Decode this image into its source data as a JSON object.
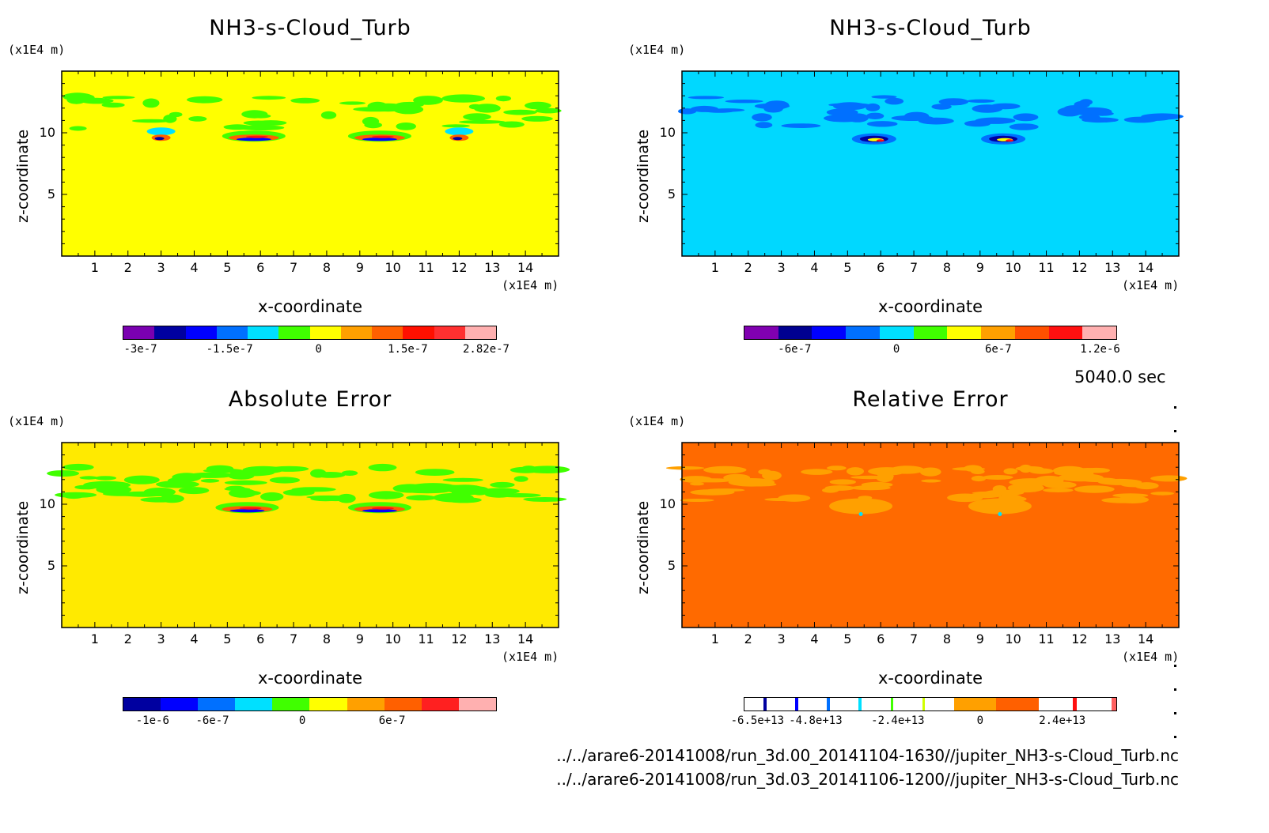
{
  "chart_data": [
    {
      "type": "heatmap",
      "title": "NH3-s-Cloud_Turb",
      "xlabel": "x-coordinate",
      "ylabel": "z-coordinate",
      "x_unit": "(x1E4 m)",
      "y_unit": "(x1E4 m)",
      "xlim": [
        0,
        15
      ],
      "ylim": [
        0,
        15
      ],
      "x_ticks": [
        "1",
        "2",
        "3",
        "4",
        "5",
        "6",
        "7",
        "8",
        "9",
        "10",
        "11",
        "12",
        "13",
        "14"
      ],
      "y_ticks": [
        "5",
        "10"
      ],
      "background_color": "#ffff00",
      "colorbar": {
        "colors": [
          "#7a00b0",
          "#0000a0",
          "#0000ff",
          "#0070ff",
          "#00e0ff",
          "#40ff00",
          "#ffff00",
          "#ffa000",
          "#ff6000",
          "#ff1000",
          "#ff3030",
          "#ffb0b0"
        ],
        "labels": [
          "-3e-7",
          "-1.5e-7",
          "0",
          "1.5e-7",
          "2.82e-7"
        ],
        "values": [
          -3e-07,
          -1.5e-07,
          0,
          1.5e-07,
          2.82e-07
        ],
        "range": [
          -3.3e-07,
          3e-07
        ]
      },
      "features": [
        {
          "x": 3.0,
          "z": 9.6,
          "kind": "minmax"
        },
        {
          "x": 5.8,
          "z": 9.6,
          "kind": "band"
        },
        {
          "x": 9.6,
          "z": 9.6,
          "kind": "band"
        },
        {
          "x": 12.0,
          "z": 9.6,
          "kind": "minmax"
        }
      ]
    },
    {
      "type": "heatmap",
      "title": "NH3-s-Cloud_Turb",
      "xlabel": "x-coordinate",
      "ylabel": "z-coordinate",
      "x_unit": "(x1E4 m)",
      "y_unit": "(x1E4 m)",
      "xlim": [
        0,
        15
      ],
      "ylim": [
        0,
        15
      ],
      "x_ticks": [
        "1",
        "2",
        "3",
        "4",
        "5",
        "6",
        "7",
        "8",
        "9",
        "10",
        "11",
        "12",
        "13",
        "14"
      ],
      "y_ticks": [
        "5",
        "10"
      ],
      "background_color": "#00d8ff",
      "colorbar": {
        "colors": [
          "#8000b0",
          "#000090",
          "#0000ff",
          "#0070ff",
          "#00e0ff",
          "#40ff00",
          "#ffff00",
          "#ffa000",
          "#ff5000",
          "#ff1010",
          "#ffb0b0"
        ],
        "labels": [
          "-6e-7",
          "0",
          "6e-7",
          "1.2e-6"
        ],
        "values": [
          -6e-07,
          0,
          6e-07,
          1.2e-06
        ],
        "range": [
          -9e-07,
          1.3e-06
        ]
      },
      "features": [
        {
          "x": 5.8,
          "z": 9.5,
          "kind": "peak"
        },
        {
          "x": 9.7,
          "z": 9.5,
          "kind": "peak"
        }
      ]
    },
    {
      "type": "heatmap",
      "title": "Absolute Error",
      "xlabel": "x-coordinate",
      "ylabel": "z-coordinate",
      "x_unit": "(x1E4 m)",
      "y_unit": "(x1E4 m)",
      "xlim": [
        0,
        15
      ],
      "ylim": [
        0,
        15
      ],
      "x_ticks": [
        "1",
        "2",
        "3",
        "4",
        "5",
        "6",
        "7",
        "8",
        "9",
        "10",
        "11",
        "12",
        "13",
        "14"
      ],
      "y_ticks": [
        "5",
        "10"
      ],
      "background_color": "#ffea00",
      "colorbar": {
        "colors": [
          "#0000a0",
          "#0000ff",
          "#0070ff",
          "#00e0ff",
          "#40ff00",
          "#ffff00",
          "#ffa000",
          "#ff6000",
          "#ff2020",
          "#ffb0b0"
        ],
        "labels": [
          "-1e-6",
          "-6e-7",
          "0",
          "6e-7"
        ],
        "values": [
          -1e-06,
          -6e-07,
          0,
          6e-07
        ],
        "range": [
          -1.2e-06,
          1.3e-06
        ]
      },
      "features": [
        {
          "x": 5.6,
          "z": 9.6,
          "kind": "band"
        },
        {
          "x": 9.6,
          "z": 9.6,
          "kind": "band"
        }
      ]
    },
    {
      "type": "heatmap",
      "title": "Relative Error",
      "xlabel": "x-coordinate",
      "ylabel": "z-coordinate",
      "x_unit": "(x1E4 m)",
      "y_unit": "(x1E4 m)",
      "xlim": [
        0,
        15
      ],
      "ylim": [
        0,
        15
      ],
      "x_ticks": [
        "1",
        "2",
        "3",
        "4",
        "5",
        "6",
        "7",
        "8",
        "9",
        "10",
        "11",
        "12",
        "13",
        "14"
      ],
      "y_ticks": [
        "5",
        "10"
      ],
      "background_color": "#ff6a00",
      "colorbar": {
        "segments": [
          {
            "color": "#ffffff",
            "w": 1
          },
          {
            "color": "#0000a0",
            "w": 0.15
          },
          {
            "color": "#ffffff",
            "w": 1.5
          },
          {
            "color": "#0000ff",
            "w": 0.15
          },
          {
            "color": "#ffffff",
            "w": 1.5
          },
          {
            "color": "#0070ff",
            "w": 0.15
          },
          {
            "color": "#ffffff",
            "w": 1.5
          },
          {
            "color": "#00e0ff",
            "w": 0.15
          },
          {
            "color": "#ffffff",
            "w": 1.5
          },
          {
            "color": "#40ff00",
            "w": 0.15
          },
          {
            "color": "#ffffff",
            "w": 1.5
          },
          {
            "color": "#d0ff00",
            "w": 0.15
          },
          {
            "color": "#ffffff",
            "w": 1.5
          },
          {
            "color": "#ffa000",
            "w": 2.2
          },
          {
            "color": "#ff6000",
            "w": 2.2
          },
          {
            "color": "#ffffff",
            "w": 1.8
          },
          {
            "color": "#ff1010",
            "w": 0.2
          },
          {
            "color": "#ffffff",
            "w": 1.8
          },
          {
            "color": "#ff6060",
            "w": 0.25
          }
        ],
        "labels": [
          "-6.5e+13",
          "-4.8e+13",
          "-2.4e+13",
          "0",
          "2.4e+13"
        ],
        "values": [
          -65000000000000.0,
          -48000000000000.0,
          -24000000000000.0,
          0,
          24000000000000.0
        ],
        "range": [
          -69000000000000.0,
          40000000000000.0
        ]
      },
      "features": [
        {
          "x": 5.4,
          "z": 9.2,
          "kind": "spot"
        },
        {
          "x": 9.6,
          "z": 9.2,
          "kind": "spot"
        }
      ]
    }
  ],
  "timestamp": "5040.0 sec",
  "files": [
    "../../arare6-20141008/run_3d.00_20141104-1630//jupiter_NH3-s-Cloud_Turb.nc",
    "../../arare6-20141008/run_3d.03_20141106-1200//jupiter_NH3-s-Cloud_Turb.nc"
  ]
}
